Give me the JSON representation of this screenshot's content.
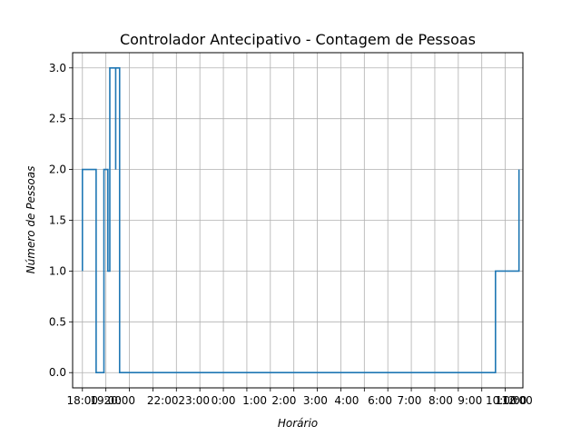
{
  "chart_data": {
    "type": "line",
    "step": true,
    "title": "Controlador Antecipativo - Contagem de Pessoas",
    "xlabel": "Horário",
    "ylabel": "Número de Pessoas",
    "grid": true,
    "line_color": "#1f77b4",
    "ylim": [
      -0.15,
      3.15
    ],
    "yticks": [
      0.0,
      0.5,
      1.0,
      1.5,
      2.0,
      2.5,
      3.0
    ],
    "ytick_labels": [
      "0.0",
      "0.5",
      "1.0",
      "1.5",
      "2.0",
      "2.5",
      "3.0"
    ],
    "xlim": [
      "17:35",
      "12:45"
    ],
    "xticks": [
      "18:00",
      "19:00",
      "20:00",
      "21:00",
      "22:00",
      "23:00",
      "00:00",
      "01:00",
      "02:00",
      "03:00",
      "04:00",
      "05:00",
      "06:00",
      "07:00",
      "08:00",
      "09:00",
      "10:00",
      "11:00",
      "12:00"
    ],
    "xtick_labels": [
      "18:00",
      "19:00",
      "20:00",
      "22:00",
      "23:00",
      "0:00",
      "1:00",
      "2:00",
      "3:00",
      "4:00",
      "6:00",
      "7:00",
      "8:00",
      "9:00",
      "10:00",
      "11:00",
      "12:00"
    ],
    "xtick_visible_positions": [
      "18:00",
      "19:00",
      "19:35",
      "21:25",
      "22:45",
      "00:00",
      "01:20",
      "02:35",
      "03:55",
      "05:15",
      "06:40",
      "07:55",
      "09:15",
      "10:30",
      "11:50",
      "12:15",
      "12:30"
    ],
    "series": [
      {
        "x": [
          "18:00",
          "18:00",
          "18:35",
          "18:35",
          "18:55",
          "18:55",
          "19:05",
          "19:05",
          "19:10",
          "19:20",
          "19:25",
          "19:25",
          "19:25",
          "19:30",
          "19:35",
          "19:35",
          "11:35",
          "11:35",
          "12:35",
          "12:35"
        ],
        "y": [
          1,
          2,
          2,
          0,
          0,
          2,
          1,
          1,
          3,
          3,
          2,
          3,
          3,
          3,
          3,
          0,
          0,
          1,
          1,
          2
        ]
      }
    ]
  }
}
